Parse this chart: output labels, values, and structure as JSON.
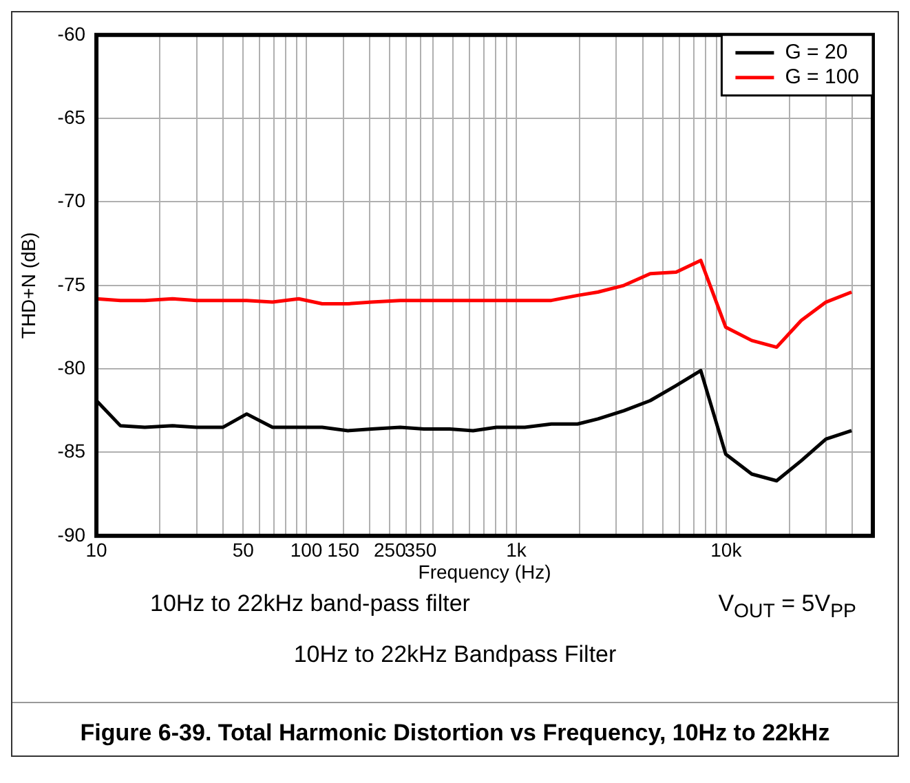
{
  "chart_data": {
    "type": "line",
    "title": "Figure 6-39. Total Harmonic Distortion vs Frequency, 10Hz to 22kHz",
    "xlabel": "Frequency (Hz)",
    "ylabel": "THD+N (dB)",
    "annotations": [
      "10Hz to 22kHz band-pass filter",
      "V$_{OUT}$ = 5V$_{PP}$",
      "10Hz to 22kHz Bandpass Filter"
    ],
    "x": [
      10,
      13,
      17,
      23,
      30,
      40,
      52,
      69,
      92,
      119,
      158,
      205,
      280,
      363,
      482,
      623,
      806,
      1100,
      1470,
      1960,
      2450,
      3260,
      4350,
      5780,
      7570,
      9950,
      13250,
      17400,
      22800,
      29900,
      39600
    ],
    "series": [
      {
        "name": "G = 20",
        "color": "#000000",
        "values": [
          -81.9,
          -83.4,
          -83.5,
          -83.4,
          -83.5,
          -83.5,
          -82.7,
          -83.5,
          -83.5,
          -83.5,
          -83.7,
          -83.6,
          -83.5,
          -83.6,
          -83.6,
          -83.7,
          -83.5,
          -83.5,
          -83.3,
          -83.3,
          -83.0,
          -82.5,
          -81.9,
          -81.0,
          -80.1,
          -85.1,
          -86.3,
          -86.7,
          -85.5,
          -84.2,
          -83.7
        ]
      },
      {
        "name": "G = 100",
        "color": "#ff0000",
        "values": [
          -75.8,
          -75.9,
          -75.9,
          -75.8,
          -75.9,
          -75.9,
          -75.9,
          -76.0,
          -75.8,
          -76.1,
          -76.1,
          -76.0,
          -75.9,
          -75.9,
          -75.9,
          -75.9,
          -75.9,
          -75.9,
          -75.9,
          -75.6,
          -75.4,
          -75.0,
          -74.3,
          -74.2,
          -73.5,
          -77.5,
          -78.3,
          -78.7,
          -77.1,
          -76.0,
          -75.4
        ]
      }
    ],
    "log": "x",
    "xlim": [
      10,
      50000
    ],
    "xticks": [
      10,
      50,
      100,
      150,
      250,
      350,
      {
        "value": 1000,
        "label": "1k"
      },
      {
        "value": 10000,
        "label": "10k"
      }
    ],
    "ylim": [
      -90,
      -60
    ],
    "yticks": [
      -90,
      -85,
      -80,
      -75,
      -70,
      -65,
      -60
    ],
    "grid": true,
    "legend": "top right",
    "marker": "none",
    "line_style": "solid"
  }
}
